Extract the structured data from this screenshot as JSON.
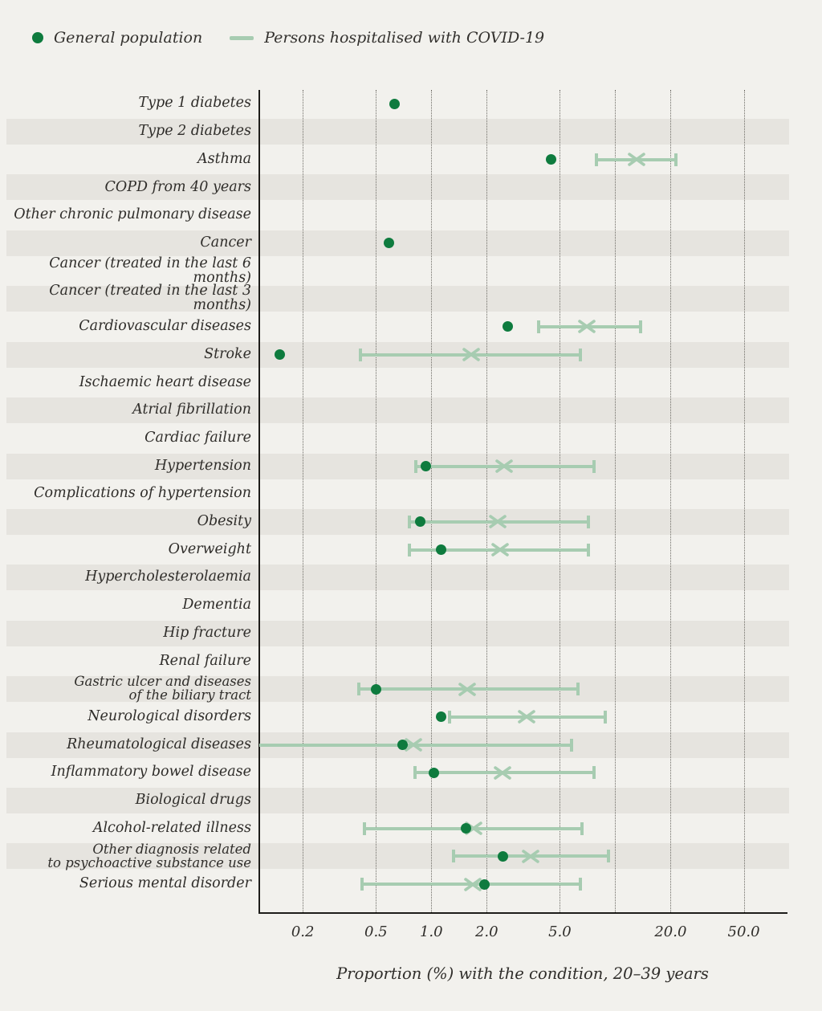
{
  "legend": {
    "general_label": "General population",
    "hospitalised_label": "Persons hospitalised with COVID-19"
  },
  "colors": {
    "general": "#0e7b3e",
    "hospitalised": "#a7ccb1",
    "band": "#e6e4df",
    "background": "#f2f1ed",
    "axis": "#1e1d1a",
    "text": "#2f2d2a"
  },
  "chart_data": {
    "type": "scatter",
    "title": "",
    "xlabel": "Proportion (%) with the condition, 20–39 years",
    "x_scale": "log",
    "x_domain": [
      0.116,
      85
    ],
    "grid": "on",
    "legend_position": "top-left",
    "gridlines": [
      0.2,
      0.5,
      1,
      2,
      5,
      10,
      20,
      50
    ],
    "x_ticks": [
      {
        "value": 0.2,
        "label": "0.2"
      },
      {
        "value": 0.5,
        "label": "0.5"
      },
      {
        "value": 1.0,
        "label": "1.0"
      },
      {
        "value": 2.0,
        "label": "2.0"
      },
      {
        "value": 5.0,
        "label": "5.0"
      },
      {
        "value": 20.0,
        "label": "20.0"
      },
      {
        "value": 50.0,
        "label": "50.0"
      }
    ],
    "series_names": [
      "General population",
      "Persons hospitalised with COVID-19"
    ],
    "rows": [
      {
        "label": "Type 1 diabetes",
        "general": 0.63
      },
      {
        "label": "Type 2 diabetes"
      },
      {
        "label": "Asthma",
        "general": 4.5,
        "hosp": 13.0,
        "ci": [
          7.9,
          21.5
        ]
      },
      {
        "label": "COPD from 40 years"
      },
      {
        "label": "Other chronic pulmonary disease"
      },
      {
        "label": "Cancer",
        "general": 0.59
      },
      {
        "label": "Cancer (treated in the last 6 months)"
      },
      {
        "label": "Cancer (treated in the last 3 months)"
      },
      {
        "label": "Cardiovascular diseases",
        "general": 2.6,
        "hosp": 7.0,
        "ci": [
          3.8,
          13.8
        ]
      },
      {
        "label": "Stroke",
        "general": 0.15,
        "hosp": 1.65,
        "ci": [
          0.41,
          6.5
        ]
      },
      {
        "label": "Ischaemic heart disease"
      },
      {
        "label": "Atrial fibrillation"
      },
      {
        "label": "Cardiac failure"
      },
      {
        "label": "Hypertension",
        "general": 0.93,
        "hosp": 2.5,
        "ci": [
          0.82,
          7.7
        ]
      },
      {
        "label": "Complications of hypertension"
      },
      {
        "label": "Obesity",
        "general": 0.87,
        "hosp": 2.3,
        "ci": [
          0.76,
          7.2
        ]
      },
      {
        "label": "Overweight",
        "general": 1.13,
        "hosp": 2.36,
        "ci": [
          0.76,
          7.2
        ]
      },
      {
        "label": "Hypercholesterolaemia"
      },
      {
        "label": "Dementia"
      },
      {
        "label": "Hip fracture"
      },
      {
        "label": "Renal failure"
      },
      {
        "label": "Gastric ulcer and diseases\nof the biliary tract",
        "two_line": true,
        "general": 0.5,
        "hosp": 1.56,
        "ci": [
          0.4,
          6.3
        ]
      },
      {
        "label": "Neurological disorders",
        "general": 1.13,
        "hosp": 3.3,
        "ci": [
          1.25,
          8.9
        ]
      },
      {
        "label": "Rheumatological diseases",
        "general": 0.7,
        "hosp": 0.8,
        "ci": [
          0.116,
          5.8
        ],
        "ci_low_truncated": true
      },
      {
        "label": "Inflammatory bowel disease",
        "general": 1.03,
        "hosp": 2.44,
        "ci": [
          0.81,
          7.7
        ]
      },
      {
        "label": "Biological drugs"
      },
      {
        "label": "Alcohol-related illness",
        "general": 1.55,
        "hosp": 1.7,
        "ci": [
          0.43,
          6.6
        ]
      },
      {
        "label": "Other diagnosis related\nto psychoactive substance use",
        "two_line": true,
        "general": 2.44,
        "hosp": 3.45,
        "ci": [
          1.31,
          9.2
        ]
      },
      {
        "label": "Serious mental disorder",
        "general": 1.95,
        "hosp": 1.68,
        "ci": [
          0.42,
          6.5
        ]
      }
    ]
  }
}
